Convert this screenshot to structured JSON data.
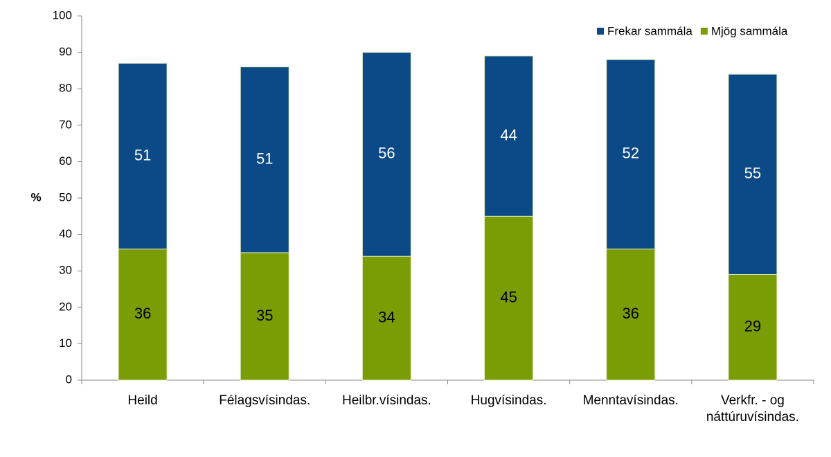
{
  "chart_data": {
    "type": "stacked-bar",
    "y_label": "%",
    "categories": [
      "Heild",
      "Félagsvísindas.",
      "Heilbr.vísindas.",
      "Hugvísindas.",
      "Menntavísindas.",
      "Verkfr. - og náttúruvísindas."
    ],
    "series": [
      {
        "name": "Mjög sammála",
        "color": "#7a9c04",
        "values": [
          36,
          35,
          34,
          45,
          36,
          29
        ]
      },
      {
        "name": "Frekar sammála",
        "color": "#0b4a86",
        "values": [
          51,
          51,
          56,
          44,
          52,
          55
        ]
      }
    ],
    "ylim": [
      0,
      100
    ],
    "yticks": [
      0,
      10,
      20,
      30,
      40,
      50,
      60,
      70,
      80,
      90,
      100
    ],
    "grid": false,
    "legend": "top-right"
  }
}
